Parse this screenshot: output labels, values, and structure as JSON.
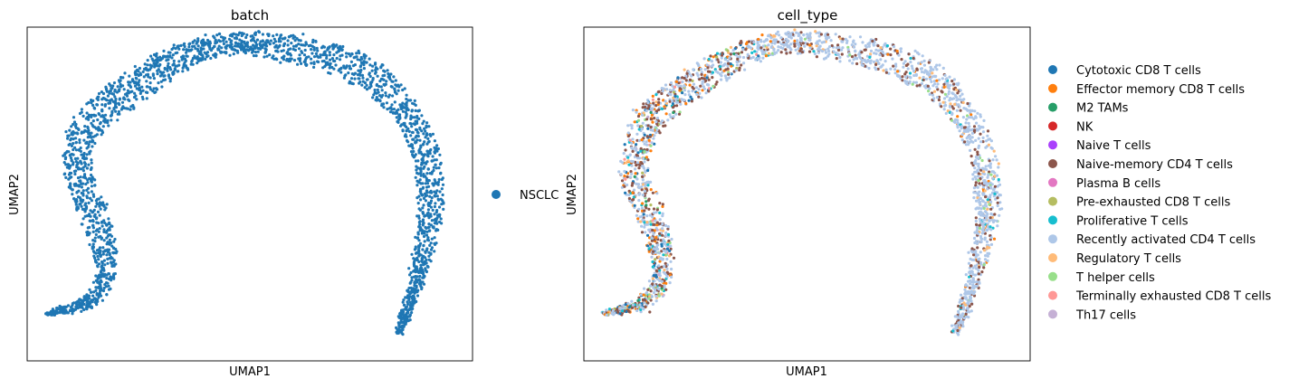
{
  "chart_data": [
    {
      "type": "scatter",
      "title": "batch",
      "xlabel": "UMAP1",
      "ylabel": "UMAP2",
      "xticks": [],
      "yticks": [],
      "legend_position": "right",
      "legend": [
        {
          "label": "NSCLC",
          "color": "#1f77b4"
        }
      ],
      "series": [
        {
          "name": "NSCLC",
          "color": "#1f77b4",
          "weight": 1.0
        }
      ]
    },
    {
      "type": "scatter",
      "title": "cell_type",
      "xlabel": "UMAP1",
      "ylabel": "UMAP2",
      "xticks": [],
      "yticks": [],
      "legend_position": "right",
      "legend": [
        {
          "label": "Cytotoxic CD8 T cells",
          "color": "#1f77b4"
        },
        {
          "label": "Effector memory CD8 T cells",
          "color": "#ff7f0e"
        },
        {
          "label": "M2 TAMs",
          "color": "#279e68"
        },
        {
          "label": "NK",
          "color": "#d62728"
        },
        {
          "label": "Naive T cells",
          "color": "#aa40fc"
        },
        {
          "label": "Naive-memory CD4 T cells",
          "color": "#8c564b"
        },
        {
          "label": "Plasma B cells",
          "color": "#e377c2"
        },
        {
          "label": "Pre-exhausted CD8 T cells",
          "color": "#b5bd61"
        },
        {
          "label": "Proliferative T cells",
          "color": "#17becf"
        },
        {
          "label": "Recently activated CD4 T cells",
          "color": "#aec7e8"
        },
        {
          "label": "Regulatory T cells",
          "color": "#ffbb78"
        },
        {
          "label": "T helper cells",
          "color": "#98df8a"
        },
        {
          "label": "Terminally exhausted CD8 T cells",
          "color": "#ff9896"
        },
        {
          "label": "Th17 cells",
          "color": "#c5b0d5"
        }
      ]
    }
  ]
}
